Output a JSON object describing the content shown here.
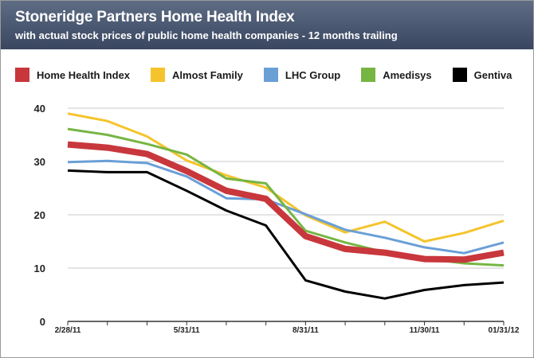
{
  "header": {
    "title": "Stoneridge Partners Home Health Index",
    "subtitle": "with actual stock prices of public home health companies - 12 months trailing"
  },
  "colors": {
    "header_bg": "#46526b",
    "grid": "#c8c8c8",
    "axis": "#333333"
  },
  "chart_data": {
    "type": "line",
    "title": "Stoneridge Partners Home Health Index",
    "subtitle": "with actual stock prices of public home health companies - 12 months trailing",
    "xlabel": "",
    "ylabel": "",
    "ylim": [
      0,
      40
    ],
    "yticks": [
      0,
      10,
      20,
      30,
      40
    ],
    "grid": true,
    "legend_position": "top",
    "x": [
      "2/28/11",
      "3/31/11",
      "4/30/11",
      "5/31/11",
      "6/30/11",
      "7/31/11",
      "8/31/11",
      "9/30/11",
      "10/31/11",
      "11/30/11",
      "12/31/11",
      "01/31/12"
    ],
    "x_tick_labels": [
      {
        "index": 0,
        "label": "2/28/11"
      },
      {
        "index": 3,
        "label": "5/31/11"
      },
      {
        "index": 6,
        "label": "8/31/11"
      },
      {
        "index": 9,
        "label": "11/30/11"
      },
      {
        "index": 11,
        "label": "01/31/12"
      }
    ],
    "series": [
      {
        "name": "Almost Family",
        "color": "#f5c42c",
        "values": [
          39.0,
          37.6,
          34.7,
          30.2,
          27.4,
          25.1,
          19.9,
          16.7,
          18.7,
          15.0,
          16.6,
          18.9
        ]
      },
      {
        "name": "LHC Group",
        "color": "#6a9fd6",
        "values": [
          29.9,
          30.1,
          29.7,
          27.2,
          23.1,
          22.9,
          20.1,
          17.2,
          15.7,
          13.9,
          12.8,
          14.8
        ]
      },
      {
        "name": "Amedisys",
        "color": "#77b543",
        "values": [
          36.1,
          35.0,
          33.3,
          31.3,
          26.8,
          25.9,
          17.0,
          14.8,
          13.0,
          11.8,
          10.9,
          10.5
        ]
      },
      {
        "name": "Gentiva",
        "color": "#000000",
        "values": [
          28.3,
          28.0,
          28.0,
          24.5,
          20.8,
          18.0,
          7.7,
          5.6,
          4.3,
          5.9,
          6.8,
          7.3
        ]
      },
      {
        "name": "Home Health Index",
        "color": "#c8373c",
        "values": [
          33.2,
          32.6,
          31.4,
          28.2,
          24.5,
          23.0,
          16.0,
          13.6,
          12.9,
          11.7,
          11.6,
          12.9
        ]
      }
    ],
    "legend_order": [
      "Home Health Index",
      "Almost Family",
      "LHC Group",
      "Amedisys",
      "Gentiva"
    ]
  }
}
